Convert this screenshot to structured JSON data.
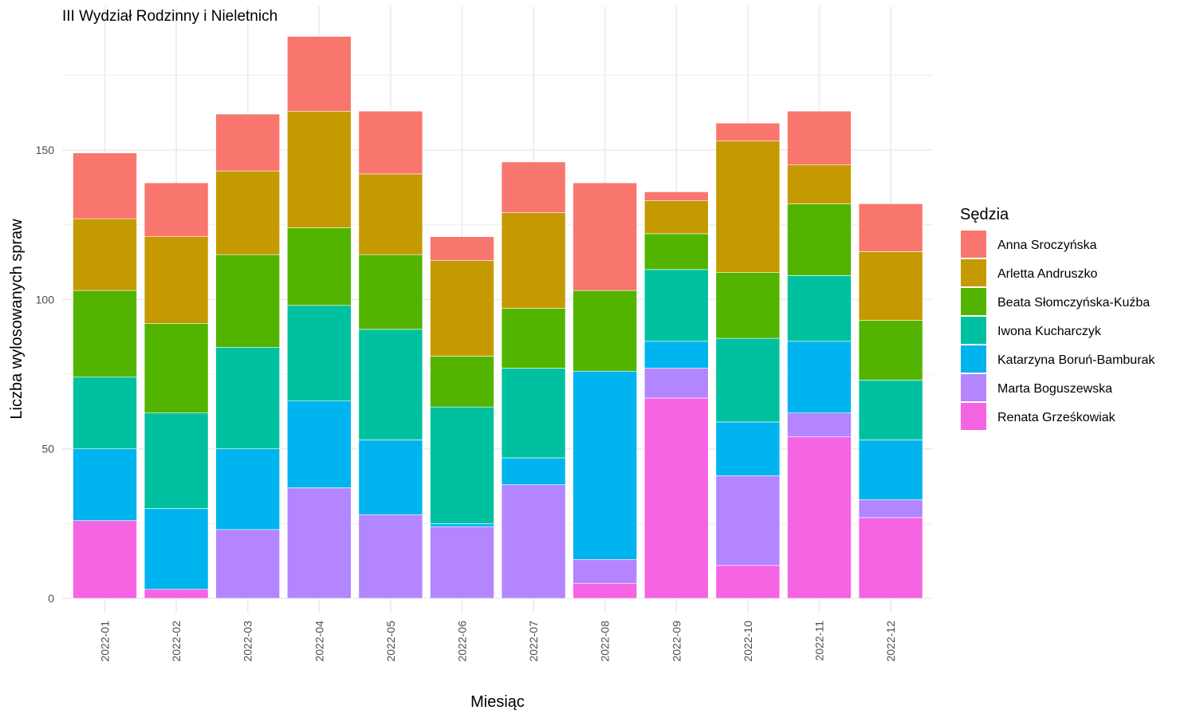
{
  "chart_data": {
    "type": "bar",
    "stacked": true,
    "title": "III Wydział Rodzinny i Nieletnich",
    "xlabel": "Miesiąc",
    "ylabel": "Liczba wylosowanych spraw",
    "ylim": [
      0,
      192
    ],
    "yticks": [
      0,
      50,
      100,
      150
    ],
    "grid": true,
    "legend": {
      "title": "Sędzia",
      "position": "right"
    },
    "categories": [
      "2022-01",
      "2022-02",
      "2022-03",
      "2022-04",
      "2022-05",
      "2022-06",
      "2022-07",
      "2022-08",
      "2022-09",
      "2022-10",
      "2022-11",
      "2022-12"
    ],
    "series": [
      {
        "name": "Renata Grześkowiak",
        "color": "#F564E3",
        "values": [
          26,
          3,
          0,
          0,
          0,
          0,
          0,
          5,
          67,
          11,
          54,
          27
        ]
      },
      {
        "name": "Marta Boguszewska",
        "color": "#B385FF",
        "values": [
          0,
          0,
          23,
          37,
          28,
          24,
          38,
          8,
          10,
          30,
          8,
          6
        ]
      },
      {
        "name": "Katarzyna Boruń-Bamburak",
        "color": "#00B4EF",
        "values": [
          24,
          27,
          27,
          29,
          25,
          1,
          9,
          63,
          9,
          18,
          24,
          20
        ]
      },
      {
        "name": "Iwona Kucharczyk",
        "color": "#00C19F",
        "values": [
          24,
          32,
          34,
          32,
          37,
          39,
          30,
          0,
          24,
          28,
          22,
          20
        ]
      },
      {
        "name": "Beata Słomczyńska-Kuźba",
        "color": "#53B400",
        "values": [
          29,
          30,
          31,
          26,
          25,
          17,
          20,
          27,
          12,
          22,
          24,
          20
        ]
      },
      {
        "name": "Arletta Andruszko",
        "color": "#C49A00",
        "values": [
          24,
          29,
          28,
          39,
          27,
          32,
          32,
          0,
          11,
          44,
          13,
          23
        ]
      },
      {
        "name": "Anna Sroczyńska",
        "color": "#F8766D",
        "values": [
          22,
          18,
          19,
          25,
          21,
          8,
          17,
          36,
          3,
          6,
          18,
          16
        ]
      }
    ],
    "legend_order": [
      "Anna Sroczyńska",
      "Arletta Andruszko",
      "Beata Słomczyńska-Kuźba",
      "Iwona Kucharczyk",
      "Katarzyna Boruń-Bamburak",
      "Marta Boguszewska",
      "Renata Grześkowiak"
    ]
  }
}
